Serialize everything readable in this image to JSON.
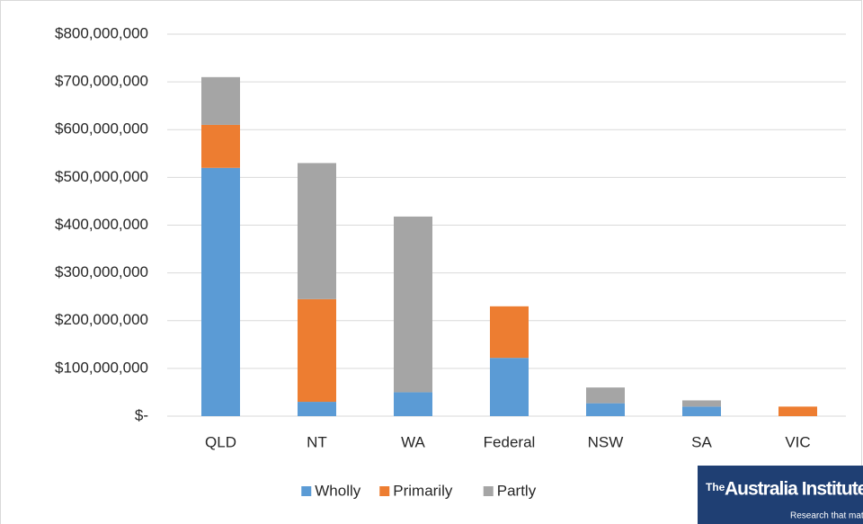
{
  "chart_data": {
    "type": "stacked_bar",
    "categories": [
      "QLD",
      "NT",
      "WA",
      "Federal",
      "NSW",
      "SA",
      "VIC"
    ],
    "series": [
      {
        "name": "Wholly",
        "color": "#5b9bd5",
        "values": [
          520000000,
          30000000,
          50000000,
          122000000,
          27000000,
          20000000,
          0
        ]
      },
      {
        "name": "Primarily",
        "color": "#ed7d31",
        "values": [
          90000000,
          215000000,
          0,
          108000000,
          0,
          0,
          20000000
        ]
      },
      {
        "name": "Partly",
        "color": "#a5a5a5",
        "values": [
          100000000,
          285000000,
          368000000,
          0,
          33000000,
          13000000,
          0
        ]
      }
    ],
    "ylim": [
      0,
      800000000
    ],
    "yticks": [
      {
        "value": 0,
        "label": "$-"
      },
      {
        "value": 100000000,
        "label": "$100,000,000"
      },
      {
        "value": 200000000,
        "label": "$200,000,000"
      },
      {
        "value": 300000000,
        "label": "$300,000,000"
      },
      {
        "value": 400000000,
        "label": "$400,000,000"
      },
      {
        "value": 500000000,
        "label": "$500,000,000"
      },
      {
        "value": 600000000,
        "label": "$600,000,000"
      },
      {
        "value": 700000000,
        "label": "$700,000,000"
      },
      {
        "value": 800000000,
        "label": "$800,000,000"
      }
    ],
    "grid": true,
    "legend": "bottom"
  },
  "logo": {
    "prefix": "The",
    "name": "Australia Institute",
    "tagline": "Research that matters"
  }
}
